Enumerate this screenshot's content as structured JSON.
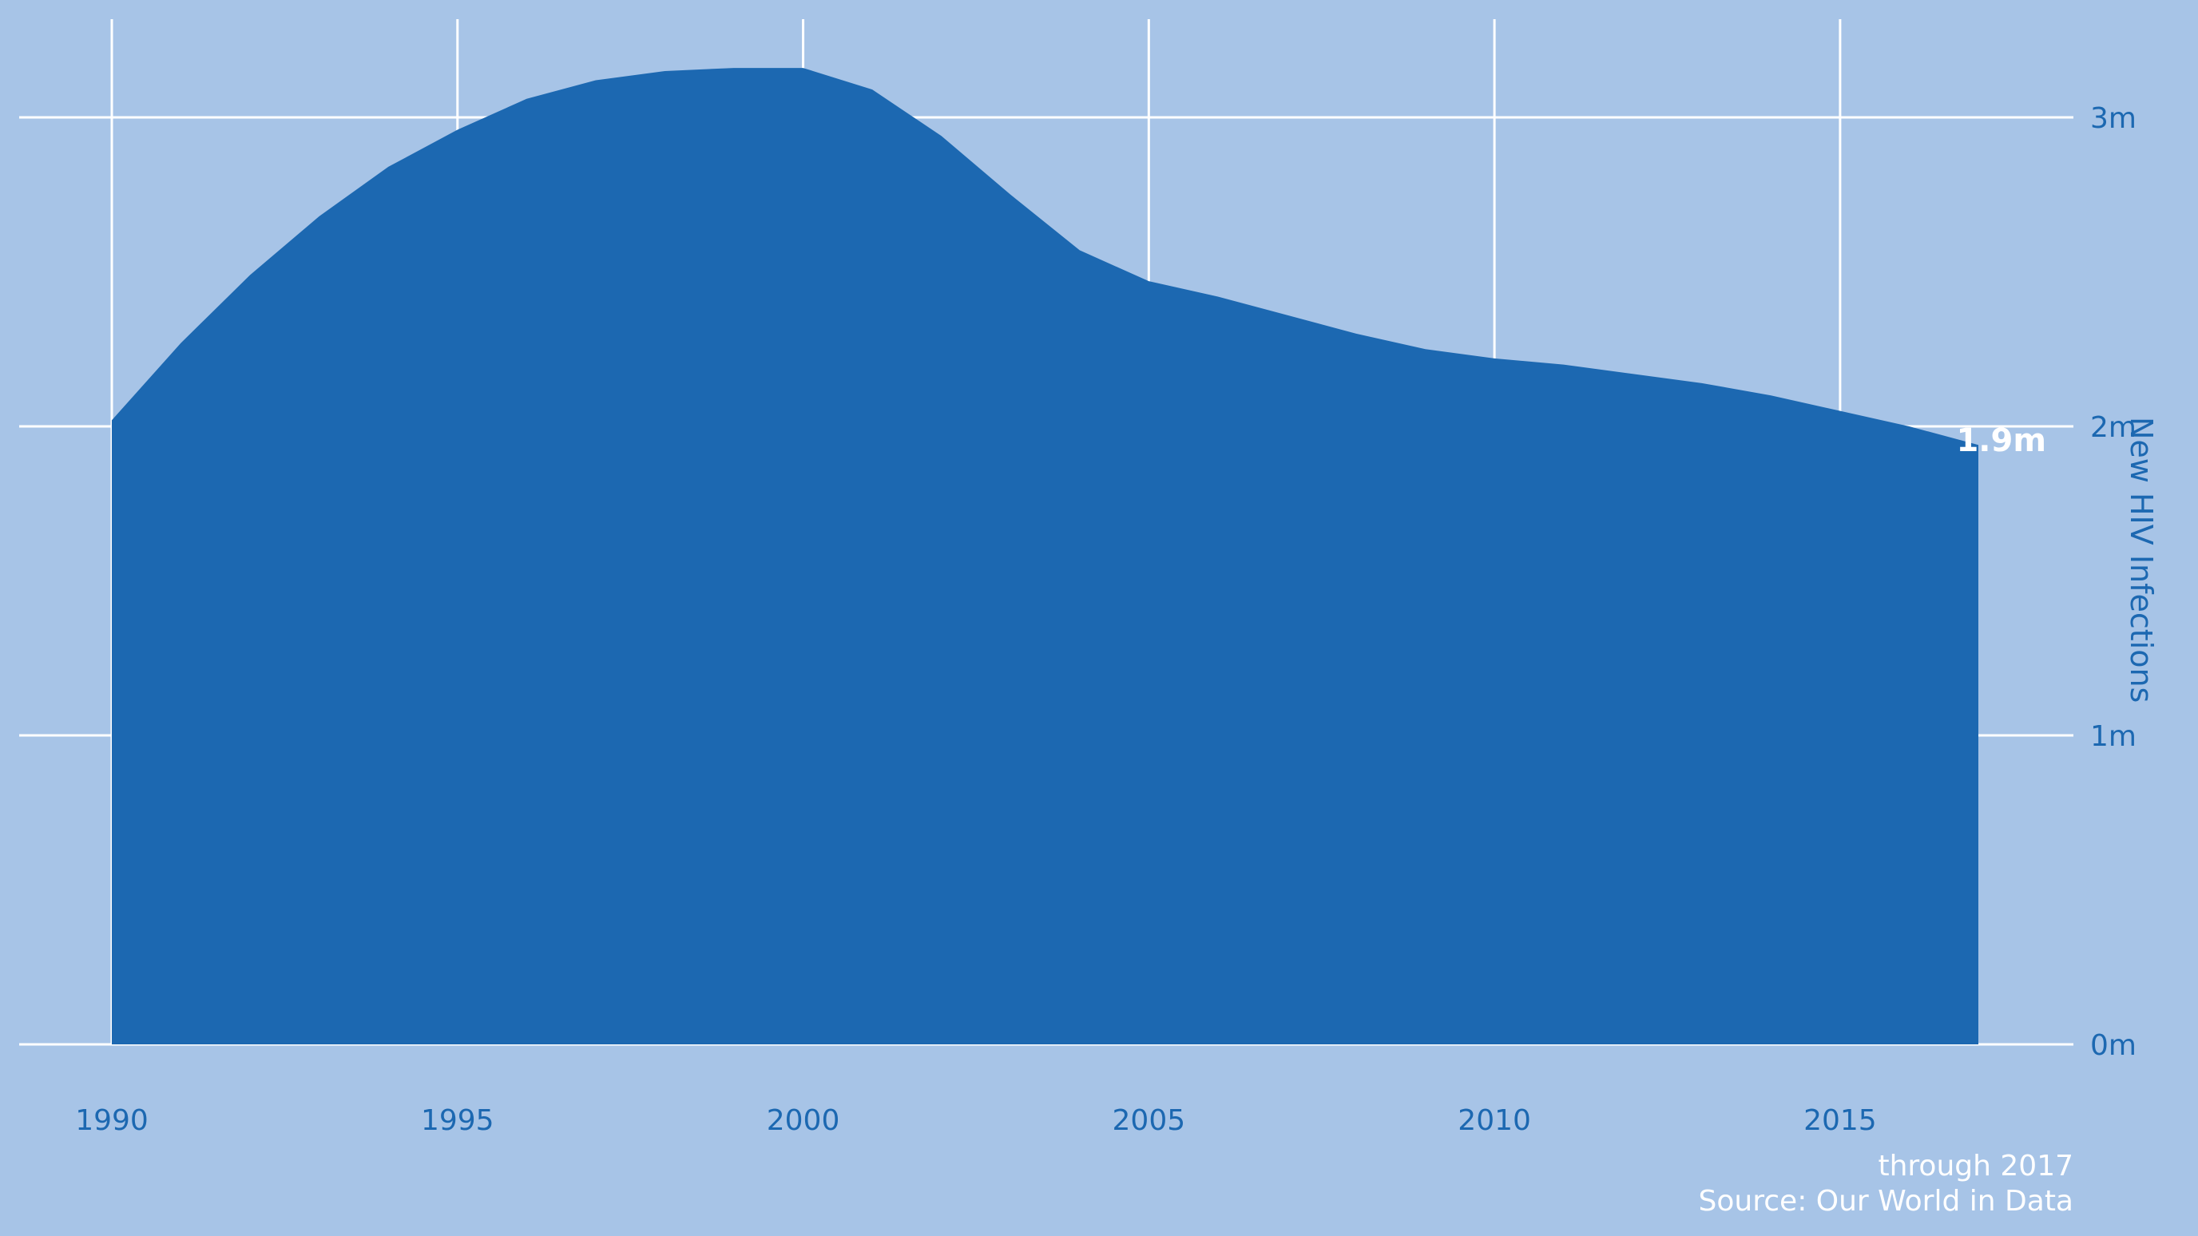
{
  "colors": {
    "background": "#a7c4e7",
    "area": "#1c68b1",
    "grid": "#ffffff",
    "tick_text": "#1c68b1",
    "annotation_text": "#ffffff"
  },
  "chart_data": {
    "type": "area",
    "ylabel": "New HIV Infections",
    "x_ticks": [
      "1990",
      "1995",
      "2000",
      "2005",
      "2010",
      "2015"
    ],
    "y_ticks": [
      "0m",
      "1m",
      "2m",
      "3m"
    ],
    "xlim": [
      1990,
      2017
    ],
    "ylim": [
      0,
      3.3
    ],
    "grid": true,
    "series": [
      {
        "x": [
          1990,
          1991,
          1992,
          1993,
          1994,
          1995,
          1996,
          1997,
          1998,
          1999,
          2000,
          2001,
          2002,
          2003,
          2004,
          2005,
          2006,
          2007,
          2008,
          2009,
          2010,
          2011,
          2012,
          2013,
          2014,
          2015,
          2016,
          2017
        ],
        "values": [
          2.02,
          2.27,
          2.49,
          2.68,
          2.84,
          2.96,
          3.06,
          3.12,
          3.15,
          3.16,
          3.16,
          3.09,
          2.94,
          2.75,
          2.57,
          2.47,
          2.42,
          2.36,
          2.3,
          2.25,
          2.22,
          2.2,
          2.17,
          2.14,
          2.1,
          2.05,
          2.0,
          1.94
        ]
      }
    ],
    "end_label": "1.9m",
    "annotations": [
      "through 2017",
      "Source: Our World in Data"
    ]
  }
}
